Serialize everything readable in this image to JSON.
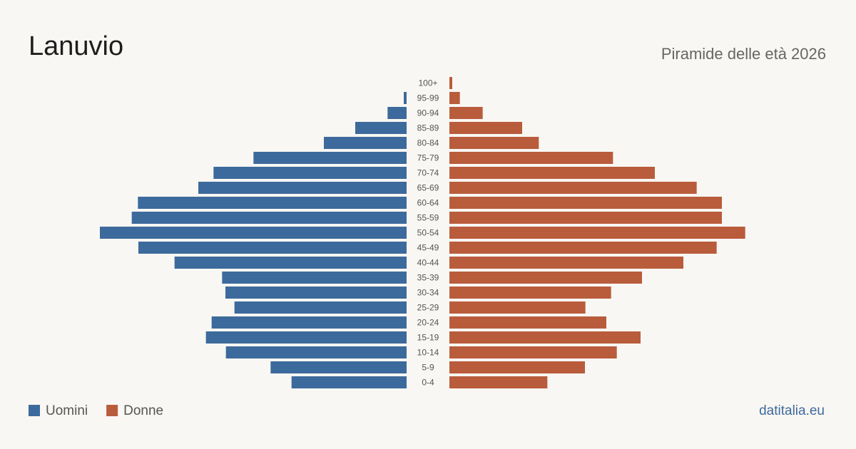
{
  "chart_data": {
    "type": "pyramid",
    "title": "Lanuvio",
    "subtitle": "Piramide delle età 2026",
    "source": "datitalia.eu",
    "categories": [
      "100+",
      "95-99",
      "90-94",
      "85-89",
      "80-84",
      "75-79",
      "70-74",
      "65-69",
      "60-64",
      "55-59",
      "50-54",
      "45-49",
      "40-44",
      "35-39",
      "30-34",
      "25-29",
      "20-24",
      "15-19",
      "10-14",
      "5-9",
      "0-4"
    ],
    "series": [
      {
        "name": "Uomini",
        "color": "#3d6a9c",
        "values": [
          0,
          6,
          40,
          108,
          174,
          322,
          406,
          438,
          565,
          578,
          645,
          564,
          488,
          388,
          381,
          362,
          410,
          422,
          380,
          286,
          242
        ]
      },
      {
        "name": "Donne",
        "color": "#b95c3c",
        "values": [
          6,
          22,
          70,
          153,
          188,
          344,
          432,
          520,
          573,
          573,
          622,
          562,
          492,
          405,
          340,
          286,
          330,
          402,
          352,
          285,
          206
        ]
      }
    ]
  }
}
